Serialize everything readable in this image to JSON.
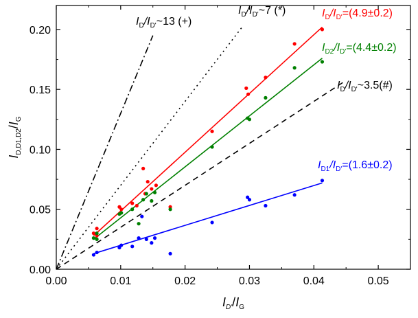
{
  "chart_data": {
    "type": "scatter",
    "title": "",
    "xlabel": {
      "main": "I",
      "sub_num": "D'",
      "sep": "/",
      "den": "I",
      "sub_den": "G"
    },
    "ylabel": {
      "main": "I",
      "sub": "D,D1,D2",
      "sep": "/",
      "den": "I",
      "sub_den": "G"
    },
    "xlim": [
      0.0,
      0.055
    ],
    "ylim": [
      0.0,
      0.22
    ],
    "x_ticks": [
      0.0,
      0.01,
      0.02,
      0.03,
      0.04,
      0.05
    ],
    "x_tick_labels": [
      "0.00",
      "0.01",
      "0.02",
      "0.03",
      "0.04",
      "0.05"
    ],
    "y_ticks": [
      0.0,
      0.05,
      0.1,
      0.15,
      0.2
    ],
    "y_tick_labels": [
      "0.00",
      "0.05",
      "0.10",
      "0.15",
      "0.20"
    ],
    "series": [
      {
        "name": "I_D/I_D'",
        "color": "#ff0000",
        "points": [
          [
            0.0058,
            0.03
          ],
          [
            0.0063,
            0.034
          ],
          [
            0.0063,
            0.028
          ],
          [
            0.0098,
            0.052
          ],
          [
            0.0101,
            0.05
          ],
          [
            0.0118,
            0.055
          ],
          [
            0.0125,
            0.053
          ],
          [
            0.0135,
            0.084
          ],
          [
            0.0138,
            0.063
          ],
          [
            0.0142,
            0.073
          ],
          [
            0.0148,
            0.067
          ],
          [
            0.0155,
            0.07
          ],
          [
            0.0177,
            0.052
          ],
          [
            0.0242,
            0.115
          ],
          [
            0.0295,
            0.151
          ],
          [
            0.0298,
            0.146
          ],
          [
            0.0325,
            0.16
          ],
          [
            0.037,
            0.188
          ],
          [
            0.0413,
            0.2
          ]
        ]
      },
      {
        "name": "I_D2/I_D'",
        "color": "#008000",
        "points": [
          [
            0.0058,
            0.026
          ],
          [
            0.0063,
            0.03
          ],
          [
            0.0063,
            0.025
          ],
          [
            0.0098,
            0.046
          ],
          [
            0.0101,
            0.047
          ],
          [
            0.0118,
            0.05
          ],
          [
            0.0128,
            0.038
          ],
          [
            0.0135,
            0.058
          ],
          [
            0.014,
            0.063
          ],
          [
            0.0148,
            0.057
          ],
          [
            0.0153,
            0.064
          ],
          [
            0.0177,
            0.05
          ],
          [
            0.0242,
            0.102
          ],
          [
            0.0297,
            0.126
          ],
          [
            0.03,
            0.125
          ],
          [
            0.0325,
            0.143
          ],
          [
            0.037,
            0.168
          ],
          [
            0.0413,
            0.173
          ]
        ]
      },
      {
        "name": "I_D1/I_D'",
        "color": "#0000ff",
        "points": [
          [
            0.0058,
            0.012
          ],
          [
            0.0063,
            0.014
          ],
          [
            0.0098,
            0.018
          ],
          [
            0.0101,
            0.02
          ],
          [
            0.0118,
            0.019
          ],
          [
            0.0128,
            0.026
          ],
          [
            0.0133,
            0.044
          ],
          [
            0.014,
            0.025
          ],
          [
            0.0148,
            0.022
          ],
          [
            0.0153,
            0.026
          ],
          [
            0.0177,
            0.013
          ],
          [
            0.0242,
            0.039
          ],
          [
            0.0297,
            0.06
          ],
          [
            0.03,
            0.058
          ],
          [
            0.0325,
            0.053
          ],
          [
            0.037,
            0.062
          ],
          [
            0.0413,
            0.074
          ]
        ]
      }
    ],
    "fit_lines": [
      {
        "name": "red-fit",
        "color": "#ff0000",
        "dash": "solid",
        "x": [
          0.0058,
          0.0413
        ],
        "y": [
          0.028,
          0.202
        ]
      },
      {
        "name": "green-fit",
        "color": "#008000",
        "dash": "solid",
        "x": [
          0.0058,
          0.0413
        ],
        "y": [
          0.025,
          0.176
        ]
      },
      {
        "name": "blue-fit",
        "color": "#0000ff",
        "dash": "solid",
        "x": [
          0.0058,
          0.0413
        ],
        "y": [
          0.013,
          0.072
        ]
      }
    ],
    "reference_lines": [
      {
        "name": "ref-13",
        "slope": 13,
        "x_end": 0.015,
        "dash": "dashdot"
      },
      {
        "name": "ref-7",
        "slope": 7,
        "x_end": 0.029,
        "dash": "dot"
      },
      {
        "name": "ref-3.5",
        "slope": 3.5,
        "x_end": 0.045,
        "dash": "dash"
      }
    ],
    "annotations": [
      {
        "name": "annot-ref-13",
        "color": "#000000",
        "parts": [
          [
            "I"
          ],
          [
            "D",
            "s"
          ],
          [
            "/I"
          ],
          [
            "D'",
            "s"
          ],
          [
            "~13 (+)"
          ]
        ]
      },
      {
        "name": "annot-ref-7",
        "color": "#000000",
        "parts": [
          [
            "I"
          ],
          [
            "D",
            "s"
          ],
          [
            "/I"
          ],
          [
            "D'",
            "s"
          ],
          [
            "~7 (*)"
          ]
        ]
      },
      {
        "name": "annot-ref-3.5",
        "color": "#000000",
        "parts": [
          [
            "I"
          ],
          [
            "D",
            "s"
          ],
          [
            "/I"
          ],
          [
            "D'",
            "s"
          ],
          [
            "~3.5(#)"
          ]
        ]
      },
      {
        "name": "annot-red",
        "color": "#ff0000",
        "parts": [
          [
            "I"
          ],
          [
            "D",
            "s"
          ],
          [
            "/I"
          ],
          [
            "D'",
            "s"
          ],
          [
            "=(4.9±0.2)"
          ]
        ]
      },
      {
        "name": "annot-green",
        "color": "#008000",
        "parts": [
          [
            "I"
          ],
          [
            "D2",
            "s"
          ],
          [
            "/I"
          ],
          [
            "D'",
            "s"
          ],
          [
            "=(4.4±0.2)"
          ]
        ]
      },
      {
        "name": "annot-blue",
        "color": "#0000ff",
        "parts": [
          [
            "I"
          ],
          [
            "D1",
            "s"
          ],
          [
            "/I"
          ],
          [
            "D'",
            "s"
          ],
          [
            "=(1.6±0.2)"
          ]
        ]
      }
    ]
  }
}
